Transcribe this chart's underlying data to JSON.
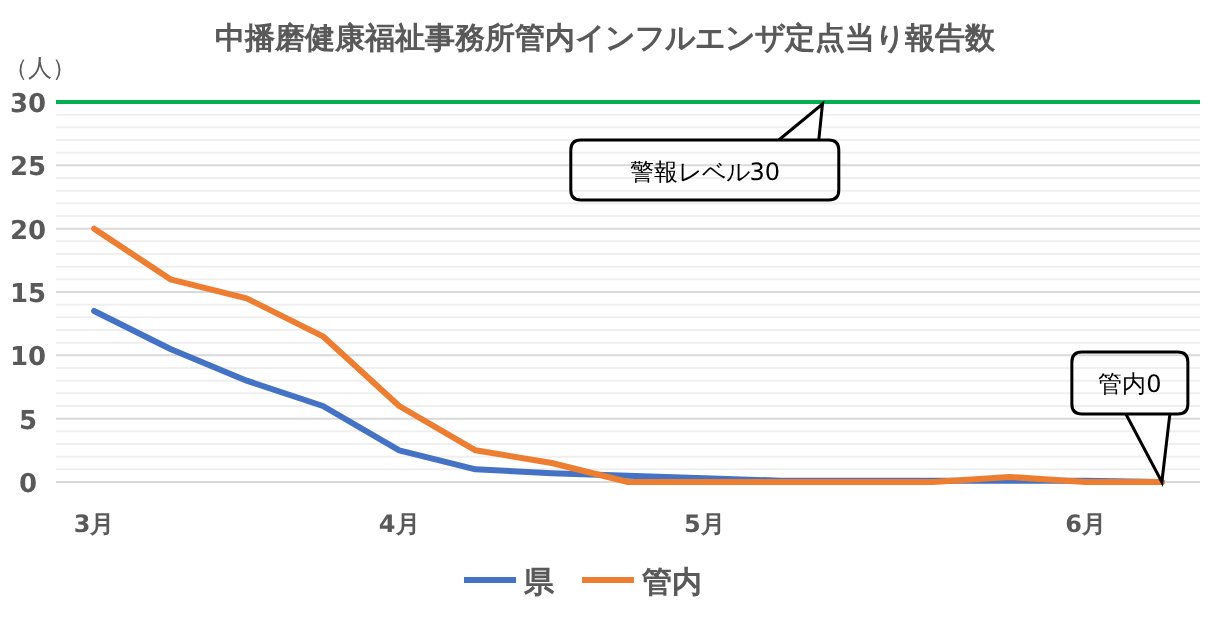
{
  "chart_data": {
    "type": "line",
    "title": "中播磨健康福祉事務所管内インフルエンザ定点当り報告数",
    "ylabel": "（人）",
    "categories": [
      "3月",
      null,
      null,
      null,
      "4月",
      null,
      null,
      null,
      "5月",
      null,
      null,
      null,
      null,
      "6月",
      null
    ],
    "series": [
      {
        "name": "県",
        "color": "#4472c4",
        "values": [
          13.5,
          10.5,
          8,
          6,
          2.5,
          1.0,
          0.7,
          0.5,
          0.3,
          0.1,
          0.1,
          0.1,
          0.1,
          0.1,
          0
        ]
      },
      {
        "name": "管内",
        "color": "#ed7d31",
        "values": [
          20,
          16,
          14.5,
          11.5,
          6,
          2.5,
          1.5,
          0,
          0,
          0,
          0,
          0,
          0.4,
          0,
          0
        ]
      }
    ],
    "ylim": [
      0,
      30
    ],
    "yticks": [
      0,
      {
        "value": 1,
        "label": null
      },
      {
        "value": 2,
        "label": null
      },
      {
        "value": 3,
        "label": null
      },
      {
        "value": 4,
        "label": null
      },
      5,
      {
        "value": 6,
        "label": null
      },
      {
        "value": 7,
        "label": null
      },
      {
        "value": 8,
        "label": null
      },
      {
        "value": 9,
        "label": null
      },
      10,
      {
        "value": 11,
        "label": null
      },
      {
        "value": 12,
        "label": null
      },
      {
        "value": 13,
        "label": null
      },
      {
        "value": 14,
        "label": null
      },
      15,
      {
        "value": 16,
        "label": null
      },
      {
        "value": 17,
        "label": null
      },
      {
        "value": 18,
        "label": null
      },
      {
        "value": 19,
        "label": null
      },
      20,
      {
        "value": 21,
        "label": null
      },
      {
        "value": 22,
        "label": null
      },
      {
        "value": 23,
        "label": null
      },
      {
        "value": 24,
        "label": null
      },
      25,
      {
        "value": 26,
        "label": null
      },
      {
        "value": 27,
        "label": null
      },
      {
        "value": 28,
        "label": null
      },
      {
        "value": 29,
        "label": null
      },
      30
    ],
    "grid": "y",
    "legend": "bottom",
    "marker": "none",
    "line_style": "solid",
    "ref_lines": [
      {
        "axis": "y",
        "value": 30,
        "label": "警報レベル30",
        "color": "#00b050"
      }
    ],
    "annotations": [
      "管内0"
    ]
  }
}
